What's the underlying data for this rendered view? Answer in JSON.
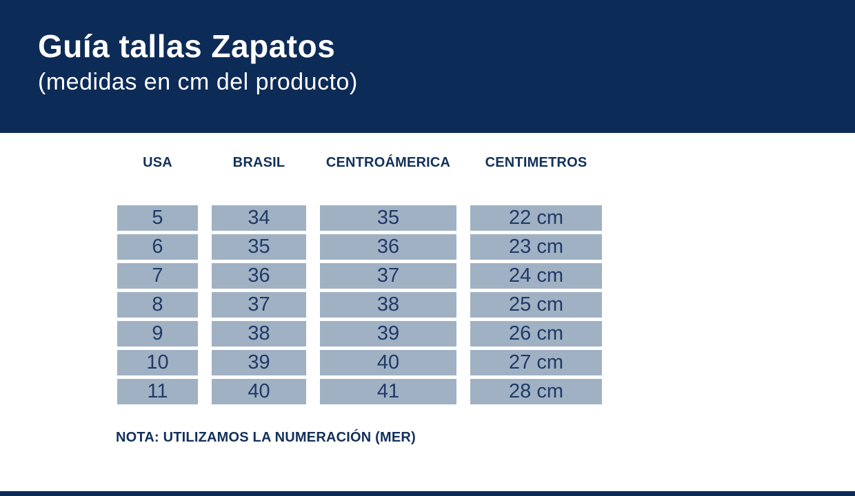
{
  "header": {
    "title": "Guía tallas Zapatos",
    "subtitle": "(medidas en cm del producto)"
  },
  "table": {
    "columns": [
      "USA",
      "BRASIL",
      "CENTROÁMERICA",
      "CENTIMETROS"
    ],
    "rows": [
      [
        "5",
        "34",
        "35",
        "22 cm"
      ],
      [
        "6",
        "35",
        "36",
        "23 cm"
      ],
      [
        "7",
        "36",
        "37",
        "24 cm"
      ],
      [
        "8",
        "37",
        "38",
        "25 cm"
      ],
      [
        "9",
        "38",
        "39",
        "26 cm"
      ],
      [
        "10",
        "39",
        "40",
        "27 cm"
      ],
      [
        "11",
        "40",
        "41",
        "28 cm"
      ]
    ]
  },
  "note": "NOTA: UTILIZAMOS LA NUMERACIÓN (MER)",
  "colors": {
    "banner-navy": "#0d2b57",
    "cell-blue": "#a0b1c3",
    "cell-text-navy": "#1e3a67",
    "label-navy": "#12305c"
  }
}
